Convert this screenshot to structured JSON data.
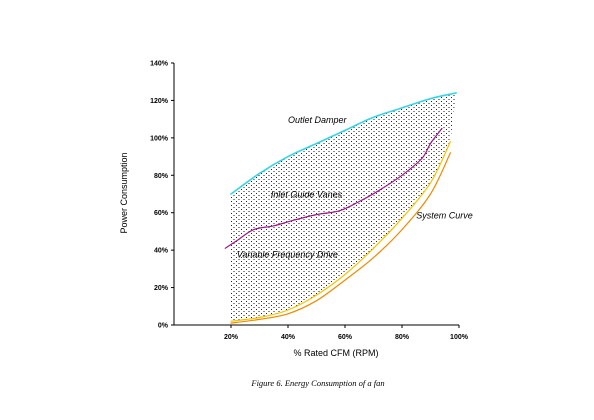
{
  "chart_data": {
    "type": "line",
    "title": "",
    "caption": "Figure 6.  Energy Consumption of a fan",
    "xlabel": "% Rated CFM (RPM)",
    "ylabel": "Power Consumption",
    "xlim": [
      0,
      100
    ],
    "ylim": [
      0,
      140
    ],
    "x_ticks": [
      20,
      40,
      60,
      80,
      100
    ],
    "x_tick_labels": [
      "20%",
      "40%",
      "60%",
      "80%",
      "100%"
    ],
    "y_ticks": [
      0,
      20,
      40,
      60,
      80,
      100,
      120,
      140
    ],
    "y_tick_labels": [
      "0%",
      "20%",
      "40%",
      "60%",
      "80%",
      "100%",
      "120%",
      "140%"
    ],
    "grid": false,
    "legend": "none",
    "shaded_region": "stippled area between Outlet Damper curve and Variable Frequency Drive curve",
    "series": [
      {
        "name": "Outlet Damper",
        "color": "#33d6e6",
        "x": [
          20,
          30,
          40,
          50,
          60,
          70,
          80,
          90,
          99
        ],
        "y": [
          70,
          81,
          90,
          97,
          104,
          111,
          116,
          121,
          124
        ]
      },
      {
        "name": "Inlet Guide Vanes",
        "color": "#a0188c",
        "x": [
          18,
          22,
          28,
          35,
          42,
          50,
          58,
          65,
          72,
          80,
          87,
          90,
          94
        ],
        "y": [
          41,
          45,
          51,
          53,
          56,
          59,
          61,
          66,
          72,
          80,
          89,
          97,
          105
        ]
      },
      {
        "name": "Variable Frequency Drive",
        "color": "#f5c400",
        "x": [
          20,
          30,
          40,
          50,
          60,
          70,
          80,
          90,
          97
        ],
        "y": [
          2,
          4,
          8,
          16,
          27,
          41,
          57,
          76,
          98
        ]
      },
      {
        "name": "System Curve",
        "color": "#f08a00",
        "x": [
          20,
          30,
          40,
          50,
          60,
          70,
          80,
          90,
          97
        ],
        "y": [
          1,
          3,
          6,
          13,
          24,
          36,
          51,
          70,
          92
        ]
      }
    ],
    "annotations": [
      {
        "text": "Outlet Damper",
        "x": 40,
        "y": 108
      },
      {
        "text": "Inlet Guide Vanes",
        "x": 34,
        "y": 68
      },
      {
        "text": "Variable Frequency Drive",
        "x": 22,
        "y": 36
      },
      {
        "text": "System Curve",
        "x": 85,
        "y": 57
      }
    ]
  }
}
